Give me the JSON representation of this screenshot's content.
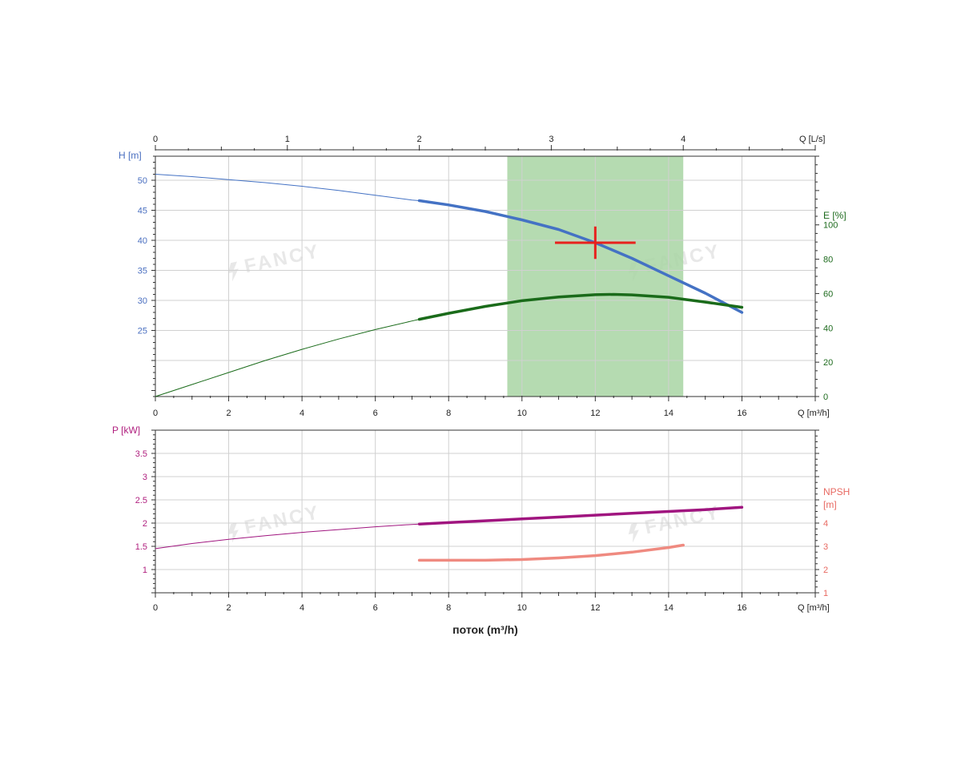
{
  "colors": {
    "head": "#4472c4",
    "head_text": "#4a6fc0",
    "efficiency": "#1a6b1a",
    "efficiency_text": "#1e6b1e",
    "power": "#a0157f",
    "power_text": "#b0207f",
    "npsh": "#ef8a80",
    "npsh_text": "#e86a62",
    "operating_range": "#a8d5a3",
    "duty_point": "#e8211d",
    "grid": "#d0d0d0",
    "axis": "#333333",
    "watermark": "#e8e8e8"
  },
  "watermark": {
    "text": "FANCY"
  },
  "chart_data": [
    {
      "type": "line",
      "panel": "top",
      "x_axis": {
        "label": "Q [m³/h]",
        "range": [
          0,
          18
        ],
        "ticks": [
          "0",
          "2",
          "4",
          "6",
          "8",
          "10",
          "12",
          "14",
          "16"
        ]
      },
      "x2_axis": {
        "label": "Q [L/s]",
        "range": [
          0,
          5
        ],
        "ticks": [
          "0",
          "1",
          "2",
          "3",
          "4"
        ]
      },
      "y_left": {
        "label": "H [m]",
        "range": [
          14,
          54
        ],
        "ticks": [
          "25",
          "30",
          "35",
          "40",
          "45",
          "50"
        ]
      },
      "y_right": {
        "label": "E [%]",
        "range": [
          0,
          140
        ],
        "ticks": [
          "0",
          "20",
          "40",
          "60",
          "80",
          "100"
        ]
      },
      "grid": true,
      "operating_range": {
        "x": [
          9.6,
          14.4
        ]
      },
      "duty_point": {
        "x": 12,
        "y": 39.6,
        "hx": 1.1,
        "hy": 2.7
      },
      "series": [
        {
          "axis": "left",
          "color_key": "head",
          "x": [
            0,
            1,
            2,
            3,
            4,
            5,
            6,
            7,
            7.2,
            8,
            9,
            10,
            11,
            12,
            13,
            14,
            15,
            16
          ],
          "y": [
            51.0,
            50.6,
            50.1,
            49.6,
            49.0,
            48.3,
            47.5,
            46.7,
            46.6,
            45.9,
            44.8,
            43.4,
            41.8,
            39.6,
            37.0,
            34.1,
            31.2,
            28.0
          ],
          "emphasis_from": 7.2
        },
        {
          "axis": "right",
          "color_key": "efficiency",
          "x": [
            0,
            1,
            2,
            3,
            4,
            5,
            6,
            7,
            7.2,
            8,
            9,
            10,
            11,
            12,
            12.5,
            13,
            14,
            15,
            16
          ],
          "y": [
            0,
            7,
            14,
            21,
            27.5,
            33.5,
            39,
            44,
            45,
            48.5,
            52.5,
            55.8,
            58,
            59.3,
            59.5,
            59.2,
            57.8,
            55,
            52
          ],
          "emphasis_from": 7.2
        }
      ]
    },
    {
      "type": "line",
      "panel": "bottom",
      "x_axis": {
        "label": "Q [m³/h]",
        "range": [
          0,
          18
        ],
        "ticks": [
          "0",
          "2",
          "4",
          "6",
          "8",
          "10",
          "12",
          "14",
          "16"
        ]
      },
      "xlabel": "поток (m³/h)",
      "y_left": {
        "label": "P [kW]",
        "range": [
          0.5,
          4.0
        ],
        "ticks": [
          "1",
          "1.5",
          "2",
          "2.5",
          "3",
          "3.5"
        ]
      },
      "y_right": {
        "label": "NPSH",
        "label2": "[m]",
        "range": [
          1,
          8
        ],
        "ticks": [
          "1",
          "2",
          "3",
          "4"
        ]
      },
      "grid": true,
      "series": [
        {
          "axis": "left",
          "color_key": "power",
          "x": [
            0,
            1,
            2,
            3,
            4,
            5,
            6,
            7,
            7.2,
            8,
            9,
            10,
            11,
            12,
            13,
            14,
            15,
            16
          ],
          "y": [
            1.45,
            1.56,
            1.65,
            1.73,
            1.8,
            1.86,
            1.92,
            1.97,
            1.98,
            2.01,
            2.05,
            2.09,
            2.13,
            2.17,
            2.21,
            2.25,
            2.29,
            2.34
          ],
          "emphasis_from": 7.2
        },
        {
          "axis": "right",
          "color_key": "npsh",
          "x": [
            7.2,
            8,
            9,
            10,
            11,
            12,
            13,
            14,
            14.4
          ],
          "y": [
            2.4,
            2.4,
            2.4,
            2.43,
            2.5,
            2.6,
            2.75,
            2.95,
            3.05
          ],
          "emphasis_from": 7.2
        }
      ]
    }
  ]
}
